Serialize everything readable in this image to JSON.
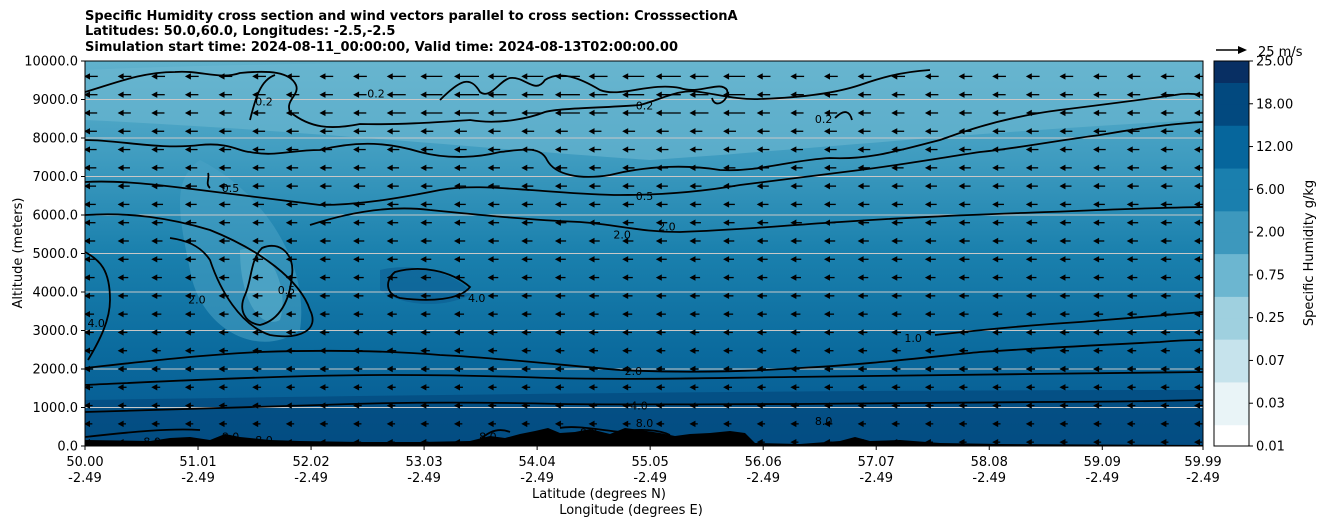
{
  "chart_data": {
    "type": "heatmap",
    "title_lines": [
      "Specific Humidity cross section and wind vectors parallel to cross section: CrosssectionA",
      "Latitudes: 50.0,60.0, Longitudes: -2.5,-2.5",
      "Simulation start time: 2024-08-11_00:00:00, Valid time: 2024-08-13T02:00:00.00"
    ],
    "ylabel": "Altitude (meters)",
    "xlabel_lat": "Latitude (degrees N)",
    "xlabel_lon": "Longitude (degrees E)",
    "ylim": [
      0,
      10000
    ],
    "xlim": [
      50.0,
      59.99
    ],
    "y_ticks": [
      "0.0",
      "1000.0",
      "2000.0",
      "3000.0",
      "4000.0",
      "5000.0",
      "6000.0",
      "7000.0",
      "8000.0",
      "9000.0",
      "10000.0"
    ],
    "x_ticks": [
      {
        "lat": "50.00",
        "lon": "-2.49"
      },
      {
        "lat": "51.01",
        "lon": "-2.49"
      },
      {
        "lat": "52.02",
        "lon": "-2.49"
      },
      {
        "lat": "53.03",
        "lon": "-2.49"
      },
      {
        "lat": "54.04",
        "lon": "-2.49"
      },
      {
        "lat": "55.05",
        "lon": "-2.49"
      },
      {
        "lat": "56.06",
        "lon": "-2.49"
      },
      {
        "lat": "57.07",
        "lon": "-2.49"
      },
      {
        "lat": "58.08",
        "lon": "-2.49"
      },
      {
        "lat": "59.09",
        "lon": "-2.49"
      },
      {
        "lat": "59.99",
        "lon": "-2.49"
      }
    ],
    "colorbar": {
      "label": "Specific Humidity g/kg",
      "tick_labels": [
        "0.01",
        "0.03",
        "0.07",
        "0.25",
        "0.75",
        "2.00",
        "6.00",
        "12.00",
        "18.00",
        "25.00"
      ]
    },
    "quiver_key": "25 m/s",
    "contour_levels": [
      0.2,
      0.5,
      1.0,
      2.0,
      4.0,
      8.0
    ],
    "contour_labels": [
      {
        "text": "0.2",
        "lat": 51.6,
        "alt": 8950
      },
      {
        "text": "0.2",
        "lat": 52.6,
        "alt": 9150
      },
      {
        "text": "0.2",
        "lat": 55.0,
        "alt": 8850
      },
      {
        "text": "0.2",
        "lat": 56.6,
        "alt": 8500
      },
      {
        "text": "0.5",
        "lat": 51.3,
        "alt": 6700
      },
      {
        "text": "0.5",
        "lat": 51.8,
        "alt": 4050
      },
      {
        "text": "0.5",
        "lat": 55.0,
        "alt": 6500
      },
      {
        "text": "2.0",
        "lat": 51.0,
        "alt": 3800
      },
      {
        "text": "2.0",
        "lat": 54.8,
        "alt": 5500
      },
      {
        "text": "2.0",
        "lat": 55.2,
        "alt": 5700
      },
      {
        "text": "2.0",
        "lat": 54.9,
        "alt": 1950
      },
      {
        "text": "4.0",
        "lat": 50.1,
        "alt": 3200
      },
      {
        "text": "4.0",
        "lat": 53.5,
        "alt": 3850
      },
      {
        "text": "4.0",
        "lat": 54.95,
        "alt": 1050
      },
      {
        "text": "8.0",
        "lat": 55.0,
        "alt": 600
      },
      {
        "text": "8.0",
        "lat": 56.6,
        "alt": 650
      },
      {
        "text": "8.0",
        "lat": 50.6,
        "alt": 120
      },
      {
        "text": "8.0",
        "lat": 51.3,
        "alt": 250
      },
      {
        "text": "8.0",
        "lat": 51.6,
        "alt": 150
      },
      {
        "text": "8.0",
        "lat": 53.6,
        "alt": 250
      },
      {
        "text": "8.0",
        "lat": 54.5,
        "alt": 350
      },
      {
        "text": "1.0",
        "lat": 57.4,
        "alt": 2800
      }
    ]
  },
  "colors": {
    "low": "#e8f4f8",
    "high": "#08306b",
    "terrain": "#000000"
  }
}
